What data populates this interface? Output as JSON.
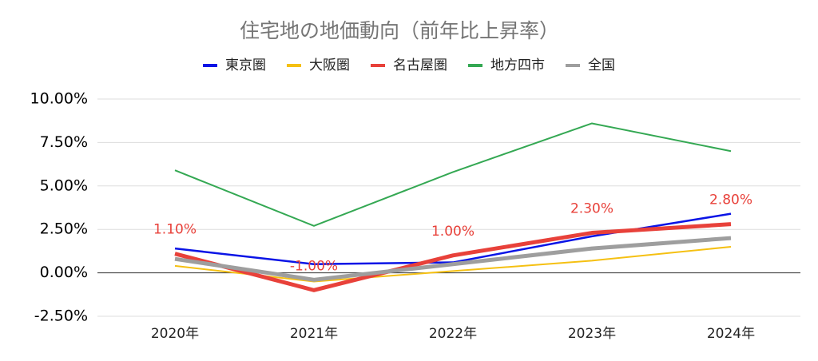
{
  "chart_data": {
    "type": "line",
    "title": "住宅地の地価動向（前年比上昇率）",
    "categories": [
      "2020年",
      "2021年",
      "2022年",
      "2023年",
      "2024年"
    ],
    "series": [
      {
        "name": "東京圏",
        "color": "#0a14e6",
        "width": 2.5,
        "values": [
          1.4,
          0.5,
          0.6,
          2.1,
          3.4
        ]
      },
      {
        "name": "大阪圏",
        "color": "#f5c012",
        "width": 2,
        "values": [
          0.4,
          -0.5,
          0.1,
          0.7,
          1.5
        ]
      },
      {
        "name": "名古屋圏",
        "color": "#e8413a",
        "width": 5,
        "values": [
          1.1,
          -1.0,
          1.0,
          2.3,
          2.8
        ],
        "value_labels": [
          "1.10%",
          "-1.00%",
          "1.00%",
          "2.30%",
          "2.80%"
        ]
      },
      {
        "name": "地方四市",
        "color": "#34a853",
        "width": 2,
        "values": [
          5.9,
          2.7,
          5.8,
          8.6,
          7.0
        ]
      },
      {
        "name": "全国",
        "color": "#9e9e9e",
        "width": 5,
        "values": [
          0.8,
          -0.4,
          0.5,
          1.4,
          2.0
        ]
      }
    ],
    "ylim": [
      -2.5,
      10
    ],
    "yticks": [
      {
        "value": -2.5,
        "label": "-2.50%"
      },
      {
        "value": 0,
        "label": "0.00%"
      },
      {
        "value": 2.5,
        "label": "2.50%"
      },
      {
        "value": 5,
        "label": "5.00%"
      },
      {
        "value": 7.5,
        "label": "7.50%"
      },
      {
        "value": 10,
        "label": "10.00%"
      }
    ],
    "grid": true
  }
}
